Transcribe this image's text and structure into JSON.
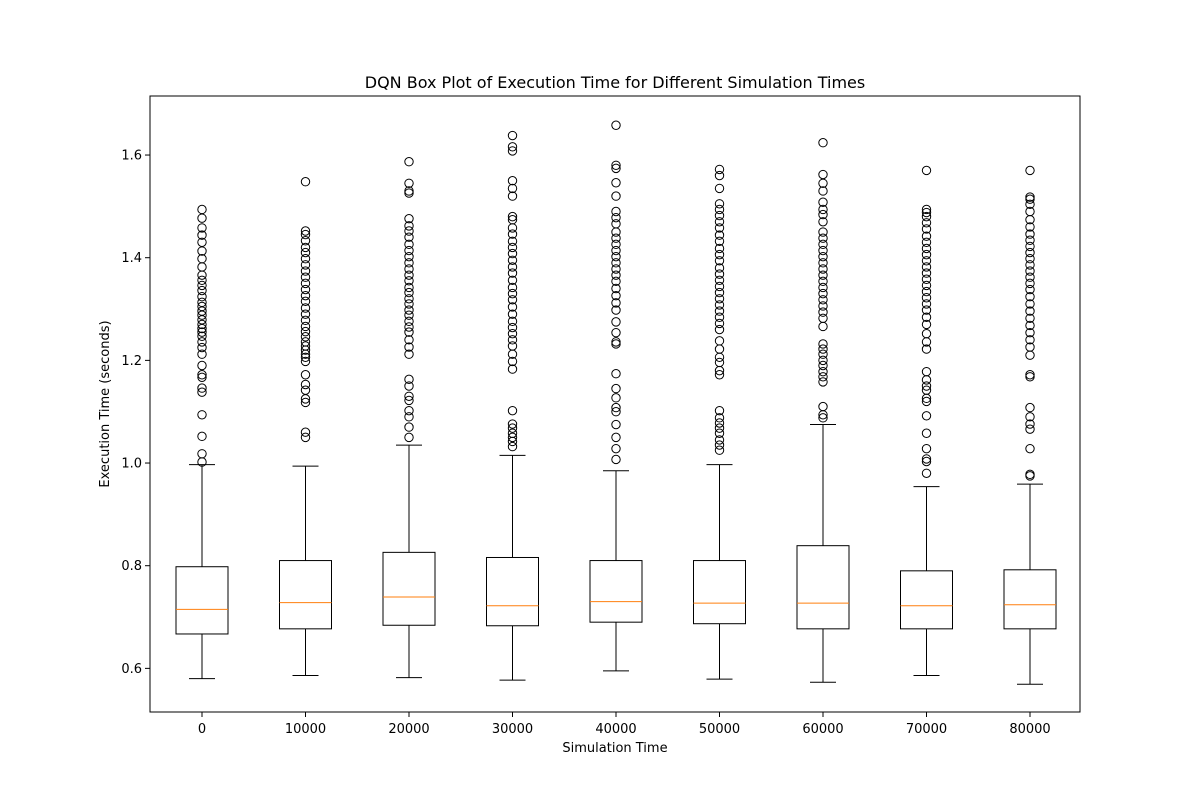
{
  "chart_data": {
    "type": "box",
    "title": "DQN Box Plot of Execution Time for Different Simulation Times",
    "xlabel": "Simulation Time",
    "ylabel": "Execution Time (seconds)",
    "ylim": [
      0.515,
      1.715
    ],
    "yticks": [
      0.6,
      0.8,
      1.0,
      1.2,
      1.4,
      1.6
    ],
    "ytick_labels": [
      "0.6",
      "0.8",
      "1.0",
      "1.2",
      "1.4",
      "1.6"
    ],
    "grid": false,
    "median_color": "#ff7f0e",
    "box_color": "#000000",
    "categories": [
      "0",
      "10000",
      "20000",
      "30000",
      "40000",
      "50000",
      "60000",
      "70000",
      "80000"
    ],
    "boxes": [
      {
        "category": "0",
        "whisker_low": 0.58,
        "q1": 0.667,
        "median": 0.715,
        "q3": 0.798,
        "whisker_high": 0.997,
        "outliers": [
          1.002,
          1.018,
          1.052,
          1.094,
          1.138,
          1.146,
          1.167,
          1.172,
          1.19,
          1.212,
          1.225,
          1.236,
          1.247,
          1.255,
          1.262,
          1.27,
          1.279,
          1.288,
          1.296,
          1.305,
          1.313,
          1.324,
          1.336,
          1.346,
          1.356,
          1.366,
          1.382,
          1.398,
          1.413,
          1.43,
          1.444,
          1.458,
          1.477,
          1.494
        ]
      },
      {
        "category": "10000",
        "whisker_low": 0.586,
        "q1": 0.677,
        "median": 0.728,
        "q3": 0.81,
        "whisker_high": 0.994,
        "outliers": [
          1.05,
          1.06,
          1.118,
          1.125,
          1.142,
          1.153,
          1.172,
          1.198,
          1.206,
          1.212,
          1.22,
          1.228,
          1.236,
          1.246,
          1.256,
          1.266,
          1.278,
          1.29,
          1.302,
          1.315,
          1.326,
          1.338,
          1.35,
          1.362,
          1.374,
          1.386,
          1.398,
          1.41,
          1.42,
          1.433,
          1.445,
          1.452,
          1.548
        ]
      },
      {
        "category": "20000",
        "whisker_low": 0.582,
        "q1": 0.684,
        "median": 0.739,
        "q3": 0.826,
        "whisker_high": 1.035,
        "outliers": [
          1.05,
          1.07,
          1.09,
          1.102,
          1.122,
          1.13,
          1.15,
          1.163,
          1.212,
          1.226,
          1.24,
          1.255,
          1.265,
          1.276,
          1.288,
          1.298,
          1.31,
          1.32,
          1.332,
          1.342,
          1.355,
          1.366,
          1.378,
          1.39,
          1.402,
          1.414,
          1.426,
          1.44,
          1.452,
          1.462,
          1.476,
          1.526,
          1.53,
          1.545,
          1.587
        ]
      },
      {
        "category": "30000",
        "whisker_low": 0.577,
        "q1": 0.683,
        "median": 0.722,
        "q3": 0.816,
        "whisker_high": 1.015,
        "outliers": [
          1.032,
          1.042,
          1.05,
          1.058,
          1.068,
          1.076,
          1.102,
          1.183,
          1.198,
          1.212,
          1.228,
          1.24,
          1.252,
          1.264,
          1.276,
          1.29,
          1.304,
          1.318,
          1.33,
          1.342,
          1.356,
          1.37,
          1.382,
          1.395,
          1.408,
          1.42,
          1.432,
          1.446,
          1.458,
          1.474,
          1.48,
          1.52,
          1.535,
          1.55,
          1.608,
          1.616,
          1.638
        ]
      },
      {
        "category": "40000",
        "whisker_low": 0.595,
        "q1": 0.69,
        "median": 0.73,
        "q3": 0.81,
        "whisker_high": 0.985,
        "outliers": [
          1.007,
          1.028,
          1.05,
          1.075,
          1.1,
          1.108,
          1.127,
          1.145,
          1.174,
          1.232,
          1.236,
          1.254,
          1.275,
          1.298,
          1.312,
          1.326,
          1.34,
          1.354,
          1.366,
          1.378,
          1.39,
          1.402,
          1.414,
          1.426,
          1.438,
          1.45,
          1.466,
          1.478,
          1.49,
          1.52,
          1.546,
          1.574,
          1.58,
          1.658
        ]
      },
      {
        "category": "50000",
        "whisker_low": 0.579,
        "q1": 0.687,
        "median": 0.727,
        "q3": 0.81,
        "whisker_high": 0.997,
        "outliers": [
          1.025,
          1.035,
          1.045,
          1.058,
          1.068,
          1.078,
          1.088,
          1.102,
          1.172,
          1.18,
          1.196,
          1.206,
          1.222,
          1.238,
          1.26,
          1.272,
          1.284,
          1.296,
          1.308,
          1.32,
          1.332,
          1.344,
          1.356,
          1.368,
          1.38,
          1.394,
          1.406,
          1.418,
          1.432,
          1.444,
          1.458,
          1.47,
          1.482,
          1.494,
          1.505,
          1.535,
          1.56,
          1.572
        ]
      },
      {
        "category": "60000",
        "whisker_low": 0.573,
        "q1": 0.677,
        "median": 0.727,
        "q3": 0.839,
        "whisker_high": 1.075,
        "outliers": [
          1.088,
          1.094,
          1.11,
          1.158,
          1.168,
          1.178,
          1.19,
          1.2,
          1.212,
          1.222,
          1.232,
          1.266,
          1.282,
          1.294,
          1.306,
          1.318,
          1.33,
          1.342,
          1.354,
          1.366,
          1.378,
          1.39,
          1.402,
          1.414,
          1.426,
          1.438,
          1.45,
          1.47,
          1.484,
          1.494,
          1.508,
          1.53,
          1.545,
          1.562,
          1.624
        ]
      },
      {
        "category": "70000",
        "whisker_low": 0.586,
        "q1": 0.677,
        "median": 0.722,
        "q3": 0.79,
        "whisker_high": 0.954,
        "outliers": [
          0.98,
          1.003,
          1.008,
          1.028,
          1.058,
          1.092,
          1.12,
          1.126,
          1.142,
          1.15,
          1.162,
          1.178,
          1.222,
          1.236,
          1.252,
          1.27,
          1.284,
          1.298,
          1.31,
          1.322,
          1.334,
          1.346,
          1.358,
          1.37,
          1.382,
          1.394,
          1.406,
          1.418,
          1.43,
          1.442,
          1.456,
          1.468,
          1.48,
          1.488,
          1.494,
          1.57
        ]
      },
      {
        "category": "80000",
        "whisker_low": 0.569,
        "q1": 0.677,
        "median": 0.724,
        "q3": 0.792,
        "whisker_high": 0.959,
        "outliers": [
          0.975,
          0.978,
          1.028,
          1.066,
          1.076,
          1.09,
          1.108,
          1.168,
          1.172,
          1.21,
          1.226,
          1.24,
          1.254,
          1.268,
          1.282,
          1.296,
          1.31,
          1.324,
          1.338,
          1.35,
          1.362,
          1.374,
          1.386,
          1.398,
          1.41,
          1.422,
          1.434,
          1.446,
          1.46,
          1.474,
          1.49,
          1.504,
          1.514,
          1.518,
          1.57
        ]
      }
    ]
  }
}
